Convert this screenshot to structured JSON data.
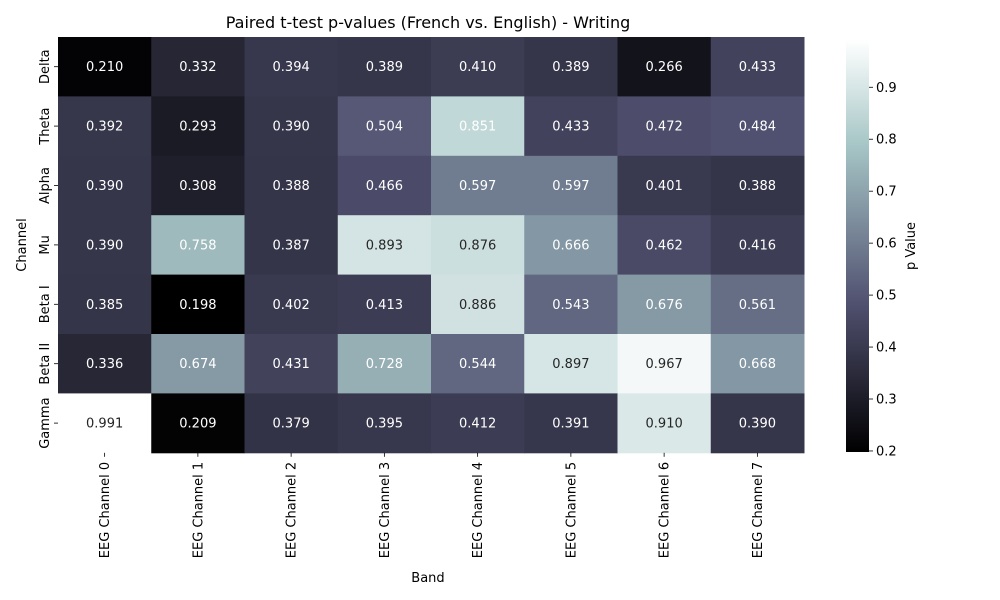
{
  "chart_data": {
    "type": "heatmap",
    "title": "Paired t-test p-values (French vs. English) - Writing",
    "xlabel": "Band",
    "ylabel": "Channel",
    "x_categories": [
      "EEG Channel 0",
      "EEG Channel 1",
      "EEG Channel 2",
      "EEG Channel 3",
      "EEG Channel 4",
      "EEG Channel 5",
      "EEG Channel 6",
      "EEG Channel 7"
    ],
    "y_categories": [
      "Delta",
      "Theta",
      "Alpha",
      "Mu",
      "Beta I",
      "Beta II",
      "Gamma"
    ],
    "values": [
      [
        0.21,
        0.332,
        0.394,
        0.389,
        0.41,
        0.389,
        0.266,
        0.433
      ],
      [
        0.392,
        0.293,
        0.39,
        0.504,
        0.851,
        0.433,
        0.472,
        0.484
      ],
      [
        0.39,
        0.308,
        0.388,
        0.466,
        0.597,
        0.597,
        0.401,
        0.388
      ],
      [
        0.39,
        0.758,
        0.387,
        0.893,
        0.876,
        0.666,
        0.462,
        0.416
      ],
      [
        0.385,
        0.198,
        0.402,
        0.413,
        0.886,
        0.543,
        0.676,
        0.561
      ],
      [
        0.336,
        0.674,
        0.431,
        0.728,
        0.544,
        0.897,
        0.967,
        0.668
      ],
      [
        0.991,
        0.209,
        0.379,
        0.395,
        0.412,
        0.391,
        0.91,
        0.39
      ]
    ],
    "colorbar": {
      "label": "p Value",
      "min": 0.198,
      "max": 0.991,
      "ticks": [
        0.2,
        0.3,
        0.4,
        0.5,
        0.6,
        0.7,
        0.8,
        0.9
      ],
      "tick_labels": [
        "0.2",
        "0.3",
        "0.4",
        "0.5",
        "0.6",
        "0.7",
        "0.8",
        "0.9"
      ]
    },
    "colormap": "bone",
    "annotation_format": "0.3f"
  }
}
